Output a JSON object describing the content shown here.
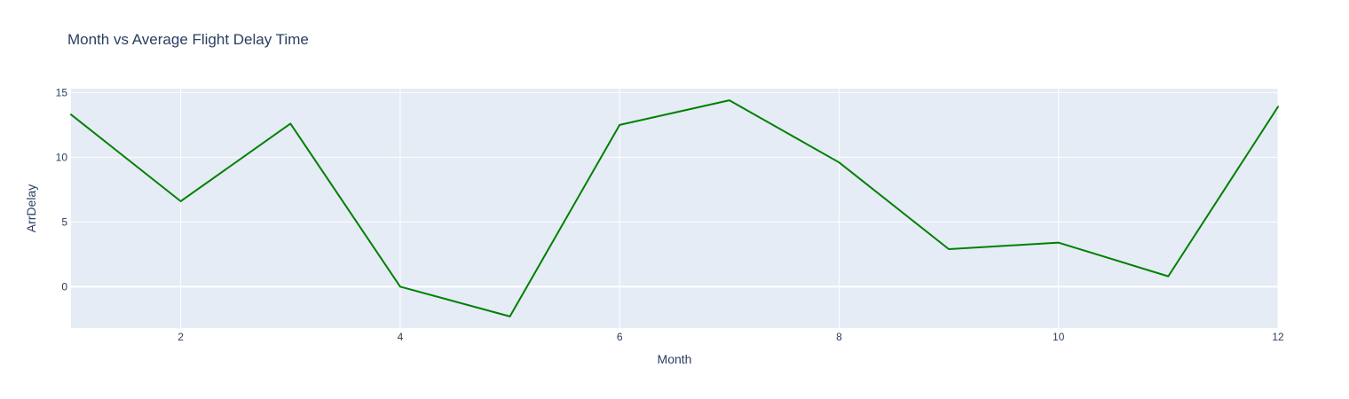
{
  "chart_data": {
    "type": "line",
    "title": "Month vs Average Flight Delay Time",
    "xlabel": "Month",
    "ylabel": "ArrDelay",
    "x": [
      1,
      2,
      3,
      4,
      5,
      6,
      7,
      8,
      9,
      10,
      11,
      12
    ],
    "series": [
      {
        "values": [
          13.3,
          6.6,
          12.6,
          0.0,
          -2.3,
          12.5,
          14.4,
          9.6,
          2.9,
          3.4,
          0.8,
          13.9
        ],
        "color": "#008000"
      }
    ],
    "xlim": [
      1,
      12
    ],
    "ylim": [
      -3.2,
      15.3
    ],
    "x_ticks": [
      2,
      4,
      6,
      8,
      10,
      12
    ],
    "y_ticks": [
      0,
      5,
      10,
      15
    ],
    "grid": true,
    "plot_background": "#e5ecf6",
    "grid_color": "#ffffff",
    "text_color": "#2a3f5f"
  }
}
